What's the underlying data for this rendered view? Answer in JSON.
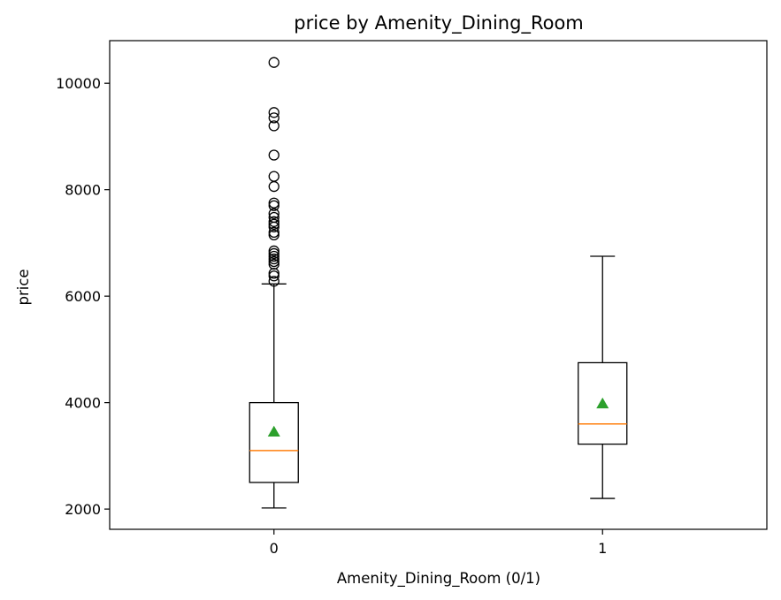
{
  "chart_data": {
    "type": "boxplot",
    "title": "price by Amenity_Dining_Room",
    "xlabel": "Amenity_Dining_Room (0/1)",
    "ylabel": "price",
    "categories": [
      "0",
      "1"
    ],
    "ylim": [
      1620,
      10800
    ],
    "yticks": [
      2000,
      4000,
      6000,
      8000,
      10000
    ],
    "grid": false,
    "boxes": [
      {
        "category": "0",
        "whisker_low": 2020,
        "q1": 2500,
        "median": 3100,
        "q3": 4000,
        "whisker_high": 6230,
        "mean": 3450,
        "outliers": [
          6280,
          6380,
          6430,
          6600,
          6650,
          6700,
          6750,
          6800,
          6850,
          7150,
          7200,
          7300,
          7350,
          7400,
          7480,
          7550,
          7700,
          7750,
          8060,
          8250,
          8650,
          9200,
          9350,
          9450,
          10390
        ]
      },
      {
        "category": "1",
        "whisker_low": 2200,
        "q1": 3220,
        "median": 3600,
        "q3": 4750,
        "whisker_high": 6750,
        "mean": 3980,
        "outliers": []
      }
    ],
    "colors": {
      "box": "#000000",
      "median": "#ff7f0e",
      "mean": "#2ca02c",
      "outlier": "#000000"
    }
  }
}
